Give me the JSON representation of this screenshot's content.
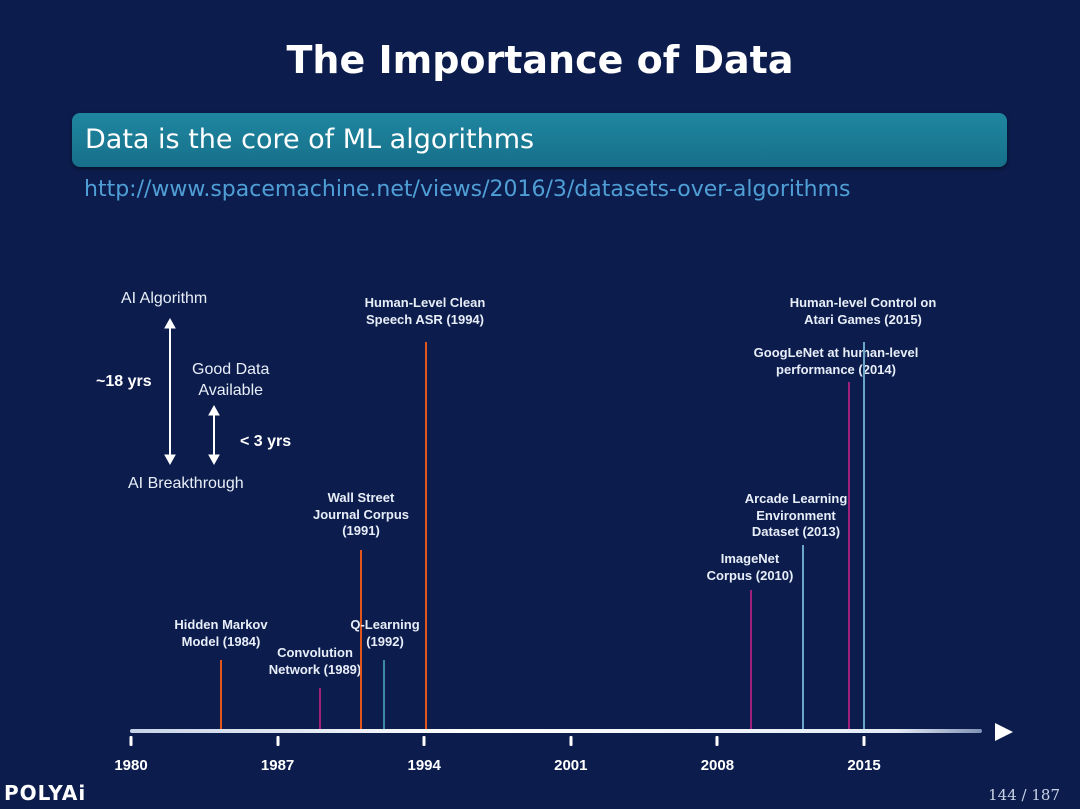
{
  "slide": {
    "title": "The Importance of Data",
    "banner": "Data is the core of ML algorithms",
    "url": "http://www.spacemachine.net/views/2016/3/datasets-over-algorithms",
    "logo": "POLYAi",
    "page": "144 / 187"
  },
  "legend": {
    "top": "AI Algorithm",
    "bottom": "AI Breakthrough",
    "good_data_line1": "Good Data",
    "good_data_line2": "Available",
    "long_gap": "~18 yrs",
    "short_gap": "< 3 yrs"
  },
  "axis": {
    "ticks": [
      "1980",
      "1987",
      "1994",
      "2001",
      "2008",
      "2015"
    ]
  },
  "events": [
    {
      "lines": [
        "Hidden Markov",
        "Model (1984)"
      ],
      "year": 1984,
      "type": "algorithm",
      "color": "#e0561c"
    },
    {
      "lines": [
        "Convolution",
        "Network (1989)"
      ],
      "year": 1989,
      "type": "algorithm",
      "color": "#a0207a"
    },
    {
      "lines": [
        "Wall Street",
        "Journal Corpus",
        "(1991)"
      ],
      "year": 1991,
      "type": "data",
      "color": "#e0561c"
    },
    {
      "lines": [
        "Q-Learning",
        "(1992)"
      ],
      "year": 1992,
      "type": "algorithm",
      "color": "#3f88a8"
    },
    {
      "lines": [
        "Human-Level Clean",
        "Speech ASR (1994)"
      ],
      "year": 1994,
      "type": "breakthrough",
      "color": "#e0561c"
    },
    {
      "lines": [
        "ImageNet",
        "Corpus (2010)"
      ],
      "year": 2010,
      "type": "data",
      "color": "#a0207a"
    },
    {
      "lines": [
        "Arcade Learning",
        "Environment",
        "Dataset (2013)"
      ],
      "year": 2013,
      "type": "data",
      "color": "#6aa6c8"
    },
    {
      "lines": [
        "GoogLeNet at human-level",
        "performance (2014)"
      ],
      "year": 2014,
      "type": "breakthrough",
      "color": "#a0207a"
    },
    {
      "lines": [
        "Human-level Control on",
        "Atari Games (2015)"
      ],
      "year": 2015,
      "type": "breakthrough",
      "color": "#6aa6c8"
    }
  ],
  "colors": {
    "background": "#0c1d4d",
    "banner": "#1c7d97",
    "url": "#4f9fd6"
  }
}
